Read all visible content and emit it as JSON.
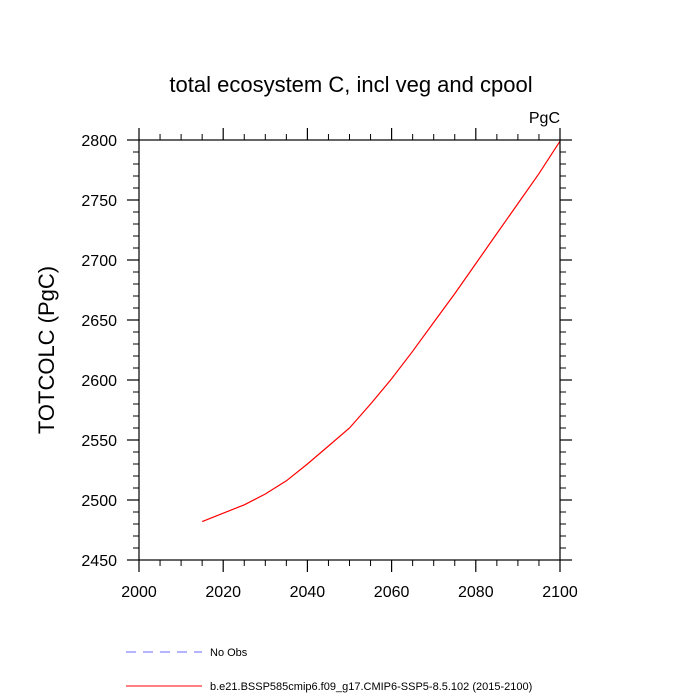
{
  "chart_data": {
    "type": "line",
    "title": "total ecosystem C, incl veg and cpool",
    "units_label": "PgC",
    "xlabel": "",
    "ylabel": "TOTCOLC  (PgC)",
    "xlim": [
      2000,
      2100
    ],
    "ylim": [
      2450,
      2800
    ],
    "x_ticks": [
      2000,
      2020,
      2040,
      2060,
      2080,
      2100
    ],
    "y_ticks": [
      2450,
      2500,
      2550,
      2600,
      2650,
      2700,
      2750,
      2800
    ],
    "grid": false,
    "legend_placement": "bottom",
    "series": [
      {
        "name": "b.e21.BSSP585cmip6.f09_g17.CMIP6-SSP5-8.5.102 (2015-2100)",
        "color": "#ff0000",
        "x": [
          2015,
          2020,
          2025,
          2030,
          2035,
          2040,
          2045,
          2050,
          2055,
          2060,
          2065,
          2070,
          2075,
          2080,
          2085,
          2090,
          2095,
          2100
        ],
        "y": [
          2482,
          2489,
          2496,
          2505,
          2516,
          2530,
          2545,
          2560,
          2580,
          2601,
          2624,
          2648,
          2672,
          2697,
          2722,
          2747,
          2772,
          2799
        ]
      }
    ],
    "legend": [
      {
        "label": "No Obs",
        "color": "#6a6aff",
        "dash": "dashed"
      },
      {
        "label": "b.e21.BSSP585cmip6.f09_g17.CMIP6-SSP5-8.5.102 (2015-2100)",
        "color": "#ff0000",
        "dash": "solid"
      }
    ]
  }
}
